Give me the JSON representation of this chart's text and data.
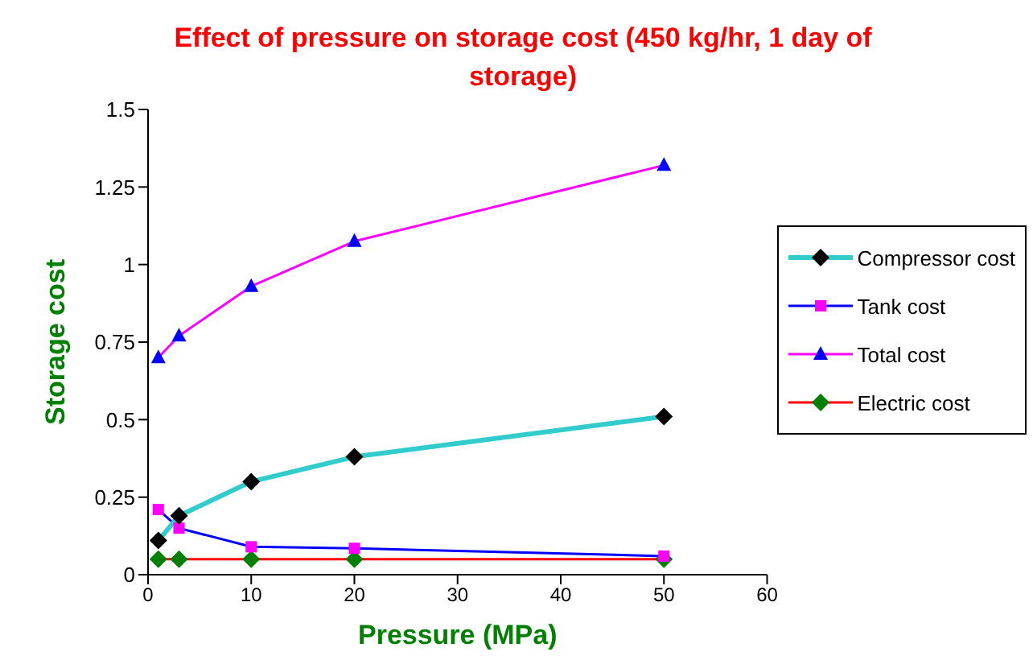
{
  "chart_data": {
    "type": "line",
    "title": "Effect of pressure on storage cost (450 kg/hr, 1 day of storage)",
    "xlabel": "Pressure (MPa)",
    "ylabel": "Storage cost",
    "x": [
      1,
      3,
      10,
      20,
      50
    ],
    "series": [
      {
        "name": "Compressor cost",
        "color": "#33cccc",
        "marker": "diamond",
        "colors": [
          "#000000",
          "#000000",
          "#000000",
          "#000000",
          "#000000"
        ],
        "values": [
          0.11,
          0.19,
          0.3,
          0.38,
          0.51
        ]
      },
      {
        "name": "Tank cost",
        "color": "#0000ff",
        "marker": "square",
        "colors": [
          "#ff00ff",
          "#ff00ff",
          "#ff00ff",
          "#ff00ff",
          "#ff00ff"
        ],
        "values": [
          0.21,
          0.15,
          0.09,
          0.085,
          0.06
        ]
      },
      {
        "name": "Total cost",
        "color": "#ff00ff",
        "marker": "triangle",
        "colors": [
          "#0000ff",
          "#0000ff",
          "#0000ff",
          "#0000ff",
          "#0000ff"
        ],
        "values": [
          0.7,
          0.77,
          0.93,
          1.075,
          1.32
        ]
      },
      {
        "name": "Electric cost",
        "color": "#ff0000",
        "marker": "diamond",
        "colors": [
          "#008000",
          "#008000",
          "#008000",
          "#008000",
          "#008000"
        ],
        "values": [
          0.05,
          0.05,
          0.05,
          0.05,
          0.05
        ]
      }
    ],
    "xlim": [
      0,
      60
    ],
    "xticks": [
      0,
      10,
      20,
      30,
      40,
      50,
      60
    ],
    "ylim": [
      0,
      1.5
    ],
    "yticks": [
      0,
      0.25,
      0.5,
      0.75,
      1,
      1.25,
      1.5
    ],
    "grid": false,
    "legend": "right",
    "line_style": "solid"
  }
}
